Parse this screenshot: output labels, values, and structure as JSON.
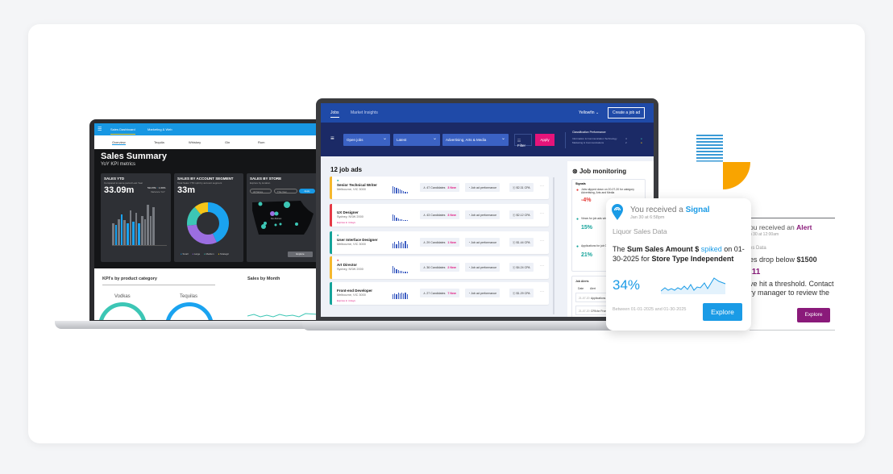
{
  "colors": {
    "brand_blue": "#1797e3",
    "signal_blue": "#1a9be6",
    "alert_purple": "#8a1a7a",
    "apply_pink": "#e5147a",
    "navy": "#1b2a66",
    "orange": "#f9a400"
  },
  "dashboard": {
    "nav": [
      "Sales Dashboard",
      "Marketing & Web"
    ],
    "tabs": [
      "Overview",
      "Tequila",
      "Whiskey",
      "Gin",
      "Rum"
    ],
    "title": "Sales Summary",
    "subtitle": "YoY KPI metrics",
    "sales_ytd": {
      "title": "SALES YTD",
      "sub": "Compared to same period Last Year",
      "value": "33.09m",
      "delta1": "524.87k",
      "delta2": "1.60%",
      "variance": "Variance YoY"
    },
    "segment": {
      "title": "SALES BY ACCOUNT SEGMENT",
      "sub": "Total Sales YTD split by account segment",
      "value": "33m",
      "legend": [
        "Small",
        "Large",
        "Medium",
        "Strategic"
      ],
      "shares": [
        43,
        30,
        16,
        11
      ],
      "colors": [
        "#1aa3f0",
        "#9b6ee0",
        "#3cc6b5",
        "#f5c518"
      ]
    },
    "store": {
      "title": "SALES BY STORE",
      "sub": "Explore by location",
      "filter1": "All Stores",
      "filter2": "This Year",
      "apply": "Apply",
      "explore": "Explore",
      "city": "Des Moines"
    },
    "kpi_title": "KPI's by product category",
    "month_title": "Sales by Month",
    "kpi_items": [
      "Vodkas",
      "Tequilas"
    ]
  },
  "jobs": {
    "nav": {
      "tab1": "Jobs",
      "tab2": "Market Insights",
      "account": "Yellowfin",
      "create": "Create a job ad"
    },
    "filters": {
      "status": "Open jobs",
      "sort": "Latest",
      "category": "Advertising, Arts & Media",
      "filter": "Filter",
      "apply": "Apply"
    },
    "classification": {
      "title": "Classification Performance",
      "rows": [
        {
          "name": "Information & Communication Technology",
          "count": "4"
        },
        {
          "name": "Marketing & Communications",
          "count": "2"
        }
      ]
    },
    "heading": "12 job ads",
    "perf_label": "Job ad performance",
    "rows": [
      {
        "title": "Senior Technical Writer",
        "location": "Melbourne, VIC 3000",
        "candidates": "47 Candidates",
        "new": "3 New",
        "cpa": "$2.31 CPA",
        "expiry": ""
      },
      {
        "title": "UX Designer",
        "location": "Sydney, NSW 2000",
        "candidates": "43 Candidates",
        "new": "3 New",
        "cpa": "$2.12 CPA",
        "expiry": "Expires in 4 days"
      },
      {
        "title": "User Interface Designer",
        "location": "Melbourne, VIC 3000",
        "candidates": "29 Candidates",
        "new": "1 New",
        "cpa": "$1.44 CPA",
        "expiry": ""
      },
      {
        "title": "Art Director",
        "location": "Sydney, NSW 2000",
        "candidates": "36 Candidates",
        "new": "2 New",
        "cpa": "$4.24 CPA",
        "expiry": ""
      },
      {
        "title": "Front-end Developer",
        "location": "Melbourne, VIC 3000",
        "candidates": "27 Candidates",
        "new": "7 New",
        "cpa": "$1.29 CPA",
        "expiry": "Expires in 4 days"
      }
    ],
    "monitoring": {
      "title": "Job monitoring",
      "signals_label": "Signals",
      "signals": [
        {
          "text": "Jobs slipped down on 20-07-20 for category Advertising, Arts and Media",
          "value": "-4%"
        },
        {
          "text": "Views for job ads where Job Title is",
          "value": "15%"
        },
        {
          "text": "Applications for job 07-26-20 where Job",
          "value": "21%"
        }
      ],
      "alerts_label": "Job Alerts",
      "alert_cols": [
        "Date",
        "Alert"
      ],
      "alerts": [
        {
          "date": "21-07-20",
          "text": "Applications Director"
        },
        {
          "date": "21-07-20",
          "text": "CPA for Frontend"
        }
      ]
    }
  },
  "signal_card": {
    "prefix": "You received a ",
    "kind": "Signal",
    "time": "Jan 30 at 6:58pm",
    "source": "Liquor Sales Data",
    "msg_the": "The ",
    "msg_metric": "Sum Sales Amount $",
    "msg_verb": "spiked",
    "msg_on": " on 01-30-2025 for ",
    "msg_dim": "Store Type Independent",
    "value": "34%",
    "range": "Between 01-01-2025 and 01-30-2025",
    "button": "Explore"
  },
  "alert_card": {
    "prefix": "ou received an ",
    "kind": "Alert",
    "time": "u 30 at 12:00am",
    "source": "es Data",
    "msg": "es drop below ",
    "threshold": "$1500",
    "value": ".11",
    "body1": "ve hit a threshold. Contact",
    "body2": "ry manager to review the",
    "button": "Explore"
  }
}
